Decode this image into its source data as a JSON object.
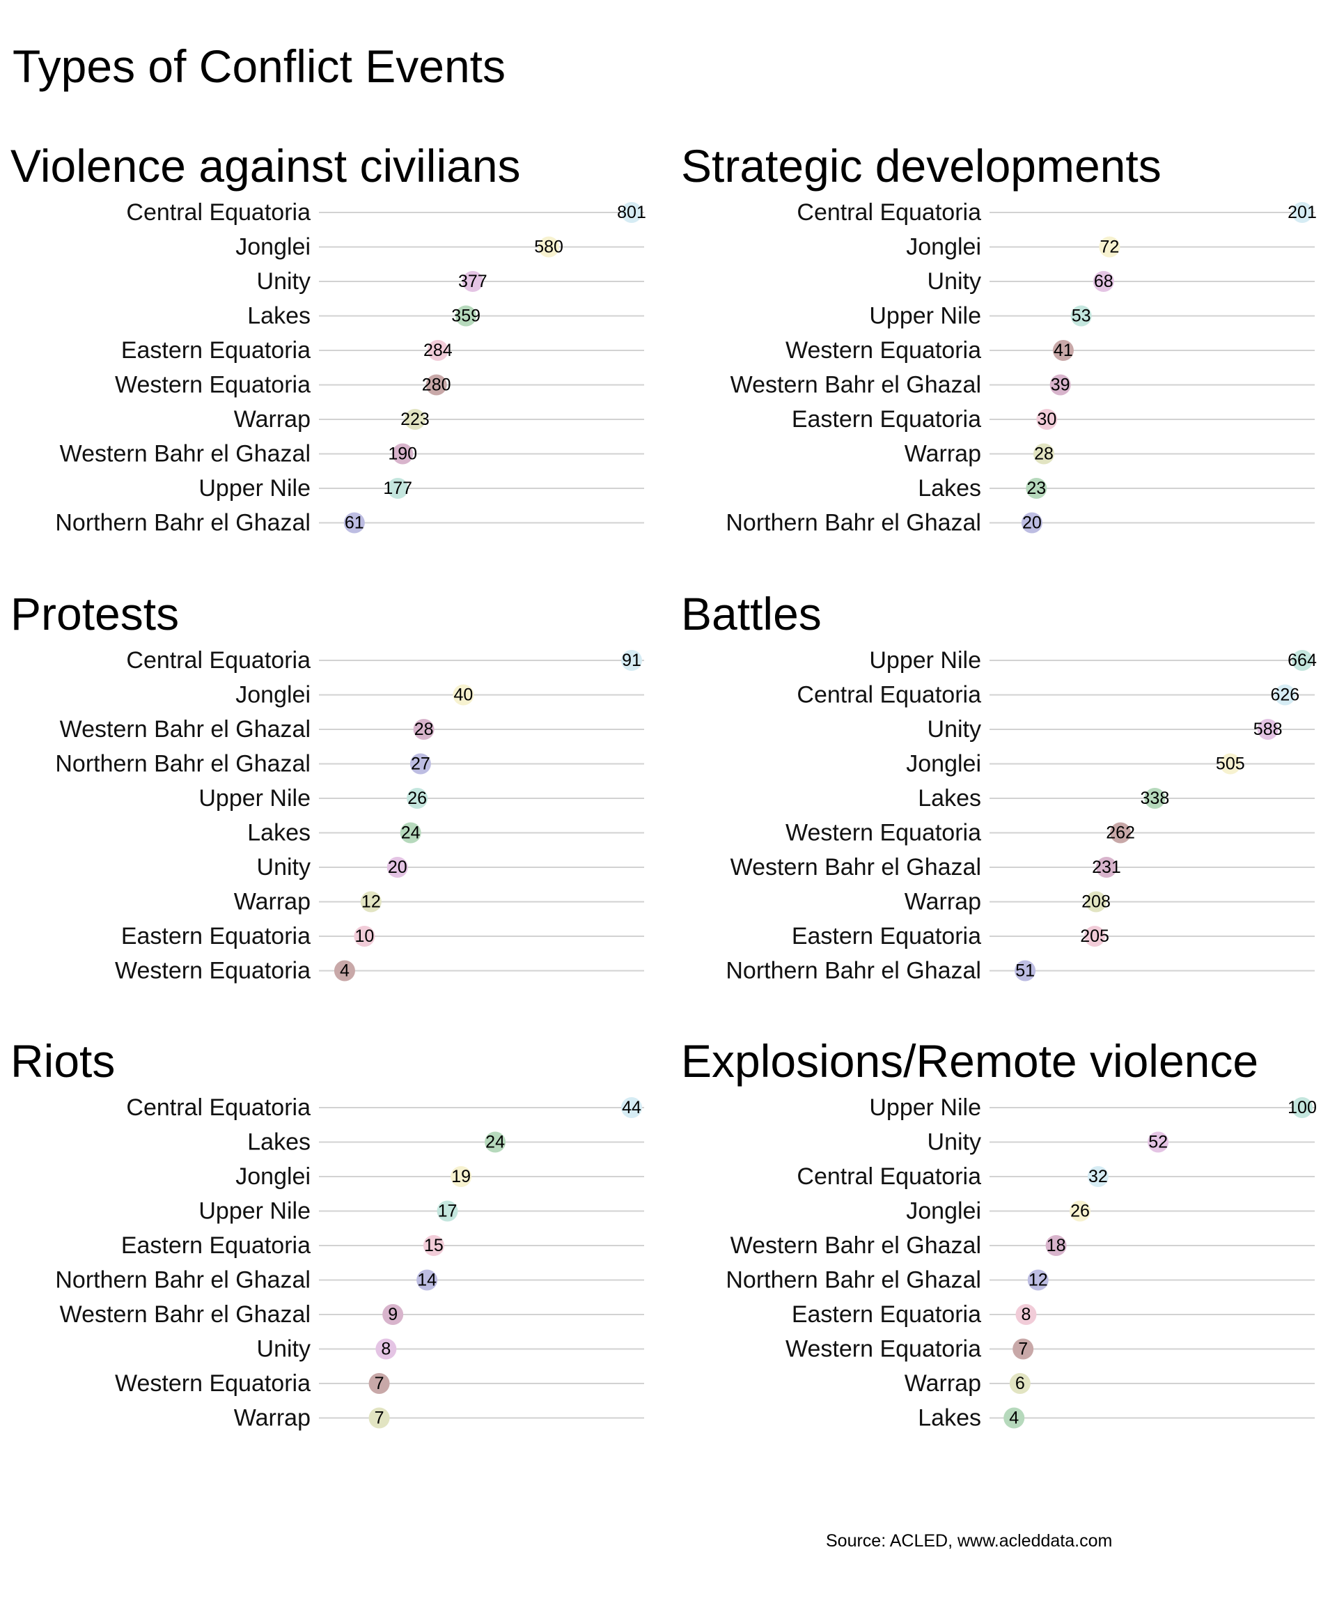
{
  "title": "Types of Conflict Events",
  "source": "Source: ACLED, www.acleddata.com",
  "region_colors": {
    "Central Equatoria": "#d6ecf4",
    "Jonglei": "#f7f2d0",
    "Unity": "#e4c4e4",
    "Lakes": "#b6d9bc",
    "Eastern Equatoria": "#f1ccd8",
    "Western Equatoria": "#c8a8a8",
    "Warrap": "#e2e4c2",
    "Western Bahr el Ghazal": "#d8b4cc",
    "Upper Nile": "#c4e6de",
    "Northern Bahr el Ghazal": "#bdbde2"
  },
  "chart_data": [
    {
      "type": "dot",
      "title": "Violence against civilians",
      "categories": [
        "Central Equatoria",
        "Jonglei",
        "Unity",
        "Lakes",
        "Eastern Equatoria",
        "Western Equatoria",
        "Warrap",
        "Western Bahr el Ghazal",
        "Upper Nile",
        "Northern Bahr el Ghazal"
      ],
      "values": [
        801,
        580,
        377,
        359,
        284,
        280,
        223,
        190,
        177,
        61
      ],
      "grid": true
    },
    {
      "type": "dot",
      "title": "Strategic developments",
      "categories": [
        "Central Equatoria",
        "Jonglei",
        "Unity",
        "Upper Nile",
        "Western Equatoria",
        "Western Bahr el Ghazal",
        "Eastern Equatoria",
        "Warrap",
        "Lakes",
        "Northern Bahr el Ghazal"
      ],
      "values": [
        201,
        72,
        68,
        53,
        41,
        39,
        30,
        28,
        23,
        20
      ],
      "grid": true
    },
    {
      "type": "dot",
      "title": "Protests",
      "categories": [
        "Central Equatoria",
        "Jonglei",
        "Western Bahr el Ghazal",
        "Northern Bahr el Ghazal",
        "Upper Nile",
        "Lakes",
        "Unity",
        "Warrap",
        "Eastern Equatoria",
        "Western Equatoria"
      ],
      "values": [
        91,
        40,
        28,
        27,
        26,
        24,
        20,
        12,
        10,
        4
      ],
      "grid": true
    },
    {
      "type": "dot",
      "title": "Battles",
      "categories": [
        "Upper Nile",
        "Central Equatoria",
        "Unity",
        "Jonglei",
        "Lakes",
        "Western Equatoria",
        "Western Bahr el Ghazal",
        "Warrap",
        "Eastern Equatoria",
        "Northern Bahr el Ghazal"
      ],
      "values": [
        664,
        626,
        588,
        505,
        338,
        262,
        231,
        208,
        205,
        51
      ],
      "grid": true
    },
    {
      "type": "dot",
      "title": "Riots",
      "categories": [
        "Central Equatoria",
        "Lakes",
        "Jonglei",
        "Upper Nile",
        "Eastern Equatoria",
        "Northern Bahr el Ghazal",
        "Western Bahr el Ghazal",
        "Unity",
        "Western Equatoria",
        "Warrap"
      ],
      "values": [
        44,
        24,
        19,
        17,
        15,
        14,
        9,
        8,
        7,
        7
      ],
      "grid": true
    },
    {
      "type": "dot",
      "title": "Explosions/Remote violence",
      "categories": [
        "Upper Nile",
        "Unity",
        "Central Equatoria",
        "Jonglei",
        "Western Bahr el Ghazal",
        "Northern Bahr el Ghazal",
        "Eastern Equatoria",
        "Western Equatoria",
        "Warrap",
        "Lakes"
      ],
      "values": [
        100,
        52,
        32,
        26,
        18,
        12,
        8,
        7,
        6,
        4
      ],
      "grid": true
    }
  ]
}
